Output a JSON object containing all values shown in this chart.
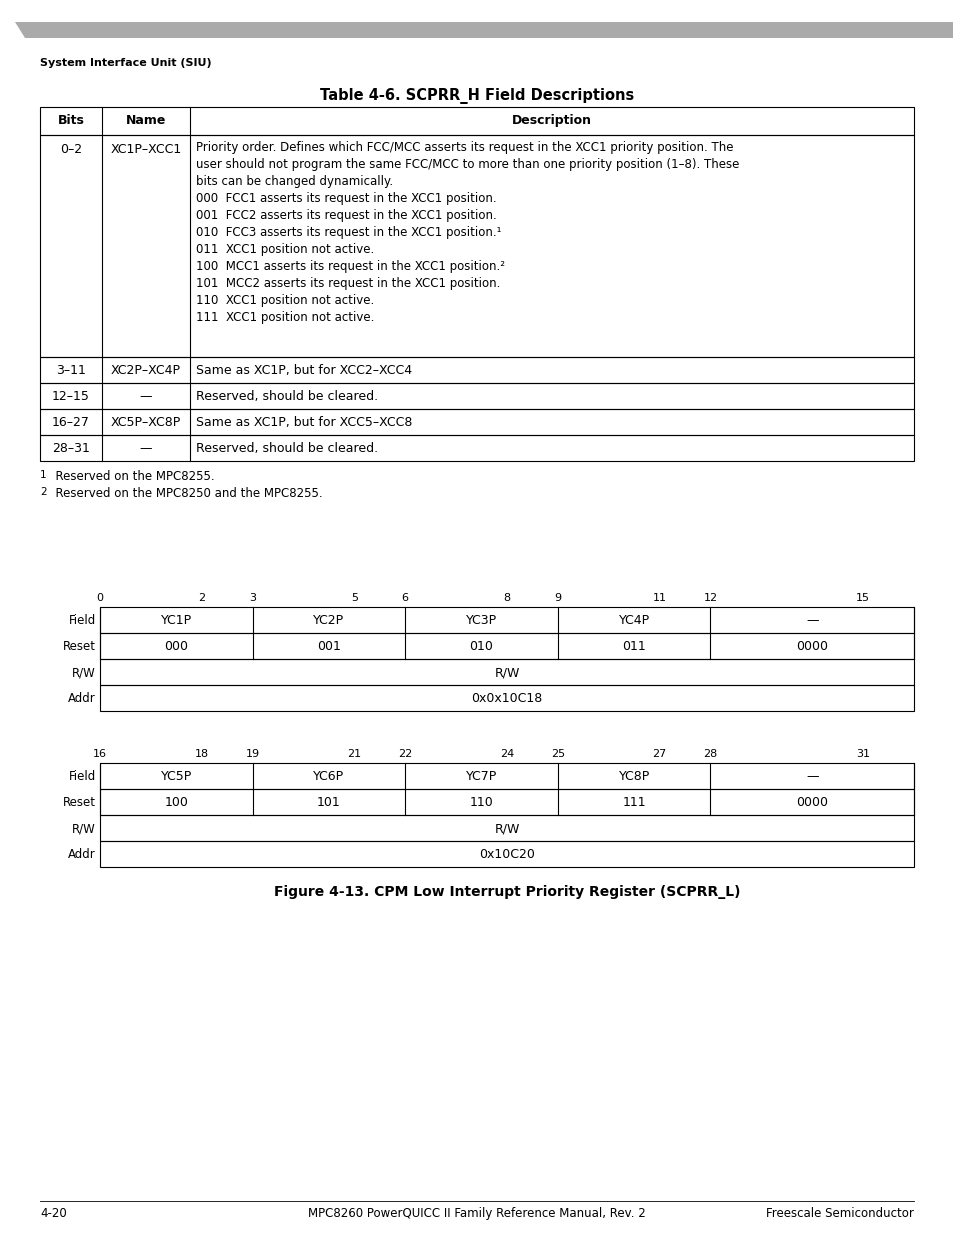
{
  "page_title": "System Interface Unit (SIU)",
  "table_title": "Table 4-6. SCPRR_H Field Descriptions",
  "table_headers": [
    "Bits",
    "Name",
    "Description"
  ],
  "table_rows": [
    {
      "bits": "0–2",
      "name": "XC1P–XCC1",
      "desc_lines": [
        "Priority order. Defines which FCC/MCC asserts its request in the XCC1 priority position. The",
        "user should not program the same FCC/MCC to more than one priority position (1–8). These",
        "bits can be changed dynamically.",
        "000  FCC1 asserts its request in the XCC1 position.",
        "001  FCC2 asserts its request in the XCC1 position.",
        "010  FCC3 asserts its request in the XCC1 position.¹",
        "011  XCC1 position not active.",
        "100  MCC1 asserts its request in the XCC1 position.²",
        "101  MCC2 asserts its request in the XCC1 position.",
        "110  XCC1 position not active.",
        "111  XCC1 position not active."
      ]
    },
    {
      "bits": "3–11",
      "name": "XC2P–XC4P",
      "desc_lines": [
        "Same as XC1P, but for XCC2–XCC4"
      ]
    },
    {
      "bits": "12–15",
      "name": "—",
      "desc_lines": [
        "Reserved, should be cleared."
      ]
    },
    {
      "bits": "16–27",
      "name": "XC5P–XC8P",
      "desc_lines": [
        "Same as XC1P, but for XCC5–XCC8"
      ]
    },
    {
      "bits": "28–31",
      "name": "—",
      "desc_lines": [
        "Reserved, should be cleared."
      ]
    }
  ],
  "footnotes": [
    "1   Reserved on the MPC8255.",
    "2   Reserved on the MPC8250 and the MPC8255."
  ],
  "figure_title": "Figure 4-13. CPM Low Interrupt Priority Register (SCPRR_L)",
  "reg_top": {
    "bit_labels": [
      "0",
      "2",
      "3",
      "5",
      "6",
      "8",
      "9",
      "11",
      "12",
      "15"
    ],
    "bit_positions": [
      0,
      2,
      3,
      5,
      6,
      8,
      9,
      11,
      12,
      15
    ],
    "fields": [
      "YC1P",
      "YC2P",
      "YC3P",
      "YC4P",
      "—"
    ],
    "reset_vals": [
      "000",
      "001",
      "010",
      "011",
      "0000"
    ],
    "rw": "R/W",
    "addr": "0x0x10C18"
  },
  "reg_bot": {
    "bit_labels": [
      "16",
      "18",
      "19",
      "21",
      "22",
      "24",
      "25",
      "27",
      "28",
      "31"
    ],
    "bit_positions": [
      16,
      18,
      19,
      21,
      22,
      24,
      25,
      27,
      28,
      31
    ],
    "fields": [
      "YC5P",
      "YC6P",
      "YC7P",
      "YC8P",
      "—"
    ],
    "reset_vals": [
      "100",
      "101",
      "110",
      "111",
      "0000"
    ],
    "rw": "R/W",
    "addr": "0x10C20"
  },
  "footer_left": "4-20",
  "footer_center": "MPC8260 PowerQUICC II Family Reference Manual, Rev. 2",
  "footer_right": "Freescale Semiconductor"
}
